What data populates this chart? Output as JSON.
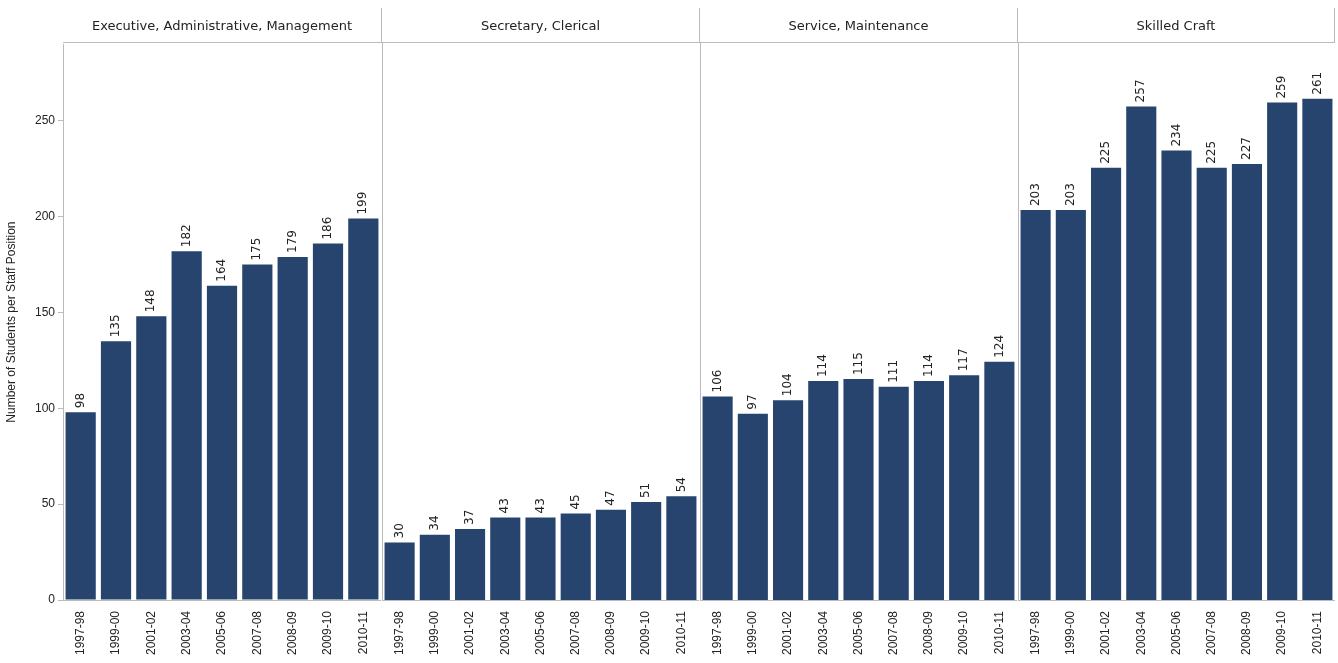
{
  "chart_data": [
    {
      "type": "bar",
      "title": "Executive, Administrative, Management",
      "ylabel": "Number of Students per Staff Position",
      "categories": [
        "1997-98",
        "1999-00",
        "2001-02",
        "2003-04",
        "2005-06",
        "2007-08",
        "2008-09",
        "2009-10",
        "2010-11"
      ],
      "values": [
        98,
        135,
        148,
        182,
        164,
        175,
        179,
        186,
        199
      ],
      "color": "#26446e",
      "data_labels": true,
      "ylim": [
        0,
        290
      ],
      "yticks": [
        0,
        50,
        100,
        150,
        200,
        250
      ]
    },
    {
      "type": "bar",
      "title": "Secretary, Clerical",
      "categories": [
        "1997-98",
        "1999-00",
        "2001-02",
        "2003-04",
        "2005-06",
        "2007-08",
        "2008-09",
        "2009-10",
        "2010-11"
      ],
      "values": [
        30,
        34,
        37,
        43,
        43,
        45,
        47,
        51,
        54
      ],
      "color": "#26446e",
      "data_labels": true,
      "ylim": [
        0,
        290
      ],
      "yticks": [
        0,
        50,
        100,
        150,
        200,
        250
      ],
      "tick_labels": "x"
    },
    {
      "type": "bar",
      "title": "Service, Maintenance",
      "categories": [
        "1997-98",
        "1999-00",
        "2001-02",
        "2003-04",
        "2005-06",
        "2007-08",
        "2008-09",
        "2009-10",
        "2010-11"
      ],
      "values": [
        106,
        97,
        104,
        114,
        115,
        111,
        114,
        117,
        124
      ],
      "color": "#26446e",
      "data_labels": true,
      "ylim": [
        0,
        290
      ],
      "yticks": [
        0,
        50,
        100,
        150,
        200,
        250
      ],
      "tick_labels": "x"
    },
    {
      "type": "bar",
      "title": "Skilled Craft",
      "categories": [
        "1997-98",
        "1999-00",
        "2001-02",
        "2003-04",
        "2005-06",
        "2007-08",
        "2008-09",
        "2009-10",
        "2010-11"
      ],
      "values": [
        203,
        203,
        225,
        257,
        234,
        225,
        227,
        259,
        261
      ],
      "color": "#26446e",
      "data_labels": true,
      "ylim": [
        0,
        290
      ],
      "yticks": [
        0,
        50,
        100,
        150,
        200,
        250
      ],
      "tick_labels": "x"
    }
  ]
}
